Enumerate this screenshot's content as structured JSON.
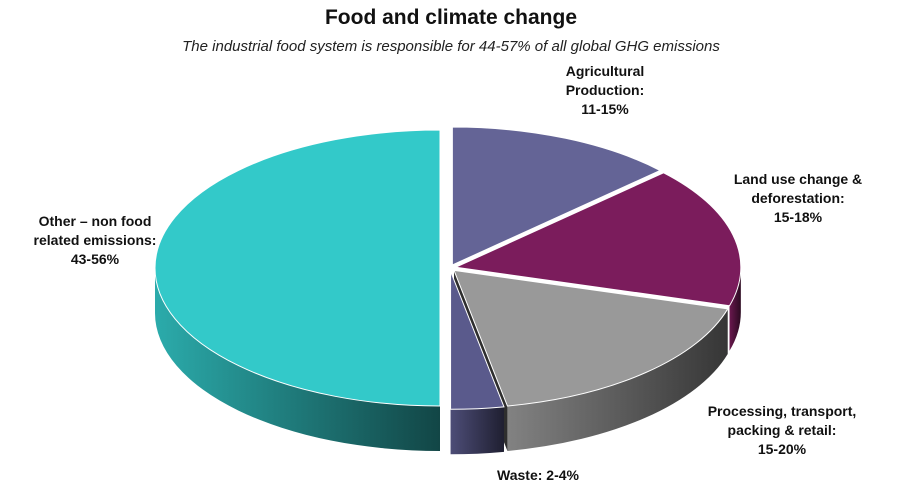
{
  "chart_data": {
    "type": "pie",
    "title": "Food and climate change",
    "subtitle": "The industrial food system is responsible for 44-57%  of all global GHG emissions",
    "slices": [
      {
        "key": "agri",
        "label_lines": [
          "Agricultural",
          "Production:",
          "11-15%"
        ],
        "value": 13,
        "color": "#646496"
      },
      {
        "key": "land",
        "label_lines": [
          "Land use change &",
          "deforestation:",
          "15-18%"
        ],
        "value": 16.5,
        "color": "#7b1c5c"
      },
      {
        "key": "proc",
        "label_lines": [
          "Processing, transport,",
          "packing & retail:",
          "15-20%"
        ],
        "value": 17.5,
        "color": "#999999"
      },
      {
        "key": "waste",
        "label_lines": [
          "Waste: 2-4%"
        ],
        "value": 3,
        "color": "#5a5a8c"
      },
      {
        "key": "other",
        "label_lines": [
          "Other – non food",
          "related emissions:",
          "43-56%"
        ],
        "value": 50,
        "color": "#33c9c9"
      }
    ],
    "legend": "none",
    "style": "3d-exploded"
  }
}
